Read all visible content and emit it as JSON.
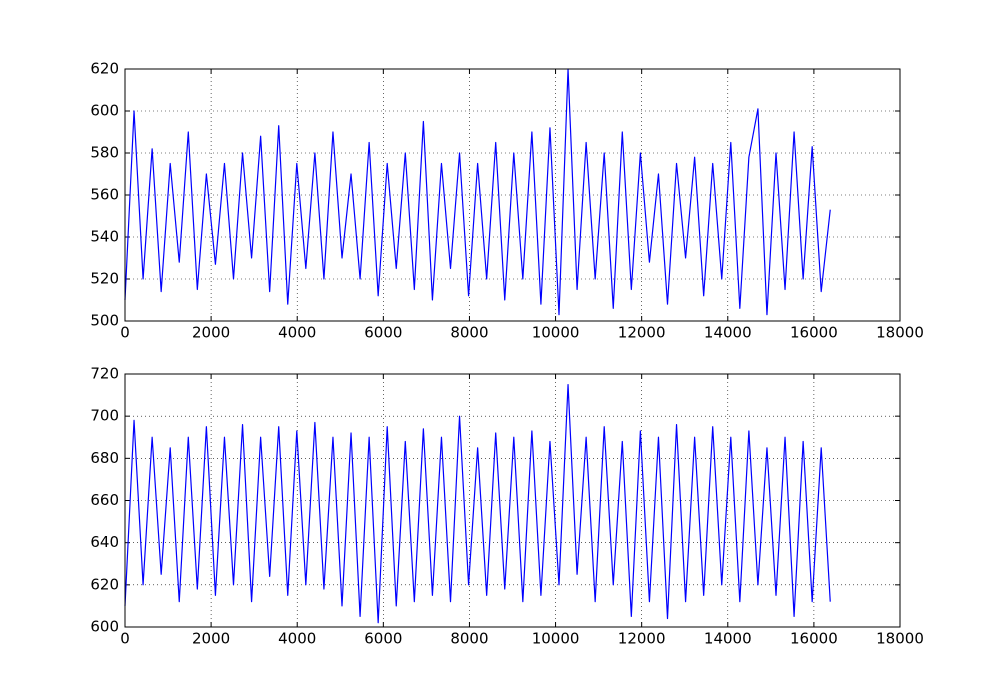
{
  "chart_data": [
    {
      "type": "line",
      "x": [
        0,
        210,
        420,
        630,
        840,
        1050,
        1260,
        1470,
        1680,
        1890,
        2100,
        2310,
        2520,
        2730,
        2940,
        3150,
        3360,
        3570,
        3780,
        3990,
        4200,
        4410,
        4620,
        4830,
        5040,
        5250,
        5460,
        5670,
        5880,
        6090,
        6300,
        6510,
        6720,
        6930,
        7140,
        7350,
        7560,
        7770,
        7980,
        8190,
        8400,
        8610,
        8820,
        9030,
        9240,
        9450,
        9660,
        9870,
        10080,
        10290,
        10500,
        10710,
        10920,
        11130,
        11340,
        11550,
        11760,
        11970,
        12180,
        12390,
        12600,
        12810,
        13020,
        13230,
        13440,
        13650,
        13860,
        14070,
        14280,
        14490,
        14700,
        14910,
        15120,
        15330,
        15540,
        15750,
        15960,
        16170,
        16380
      ],
      "series": [
        {
          "color": "#0000ff",
          "values": [
            510,
            600,
            520,
            582,
            514,
            575,
            528,
            590,
            515,
            570,
            527,
            575,
            520,
            580,
            530,
            588,
            514,
            593,
            508,
            575,
            525,
            580,
            520,
            590,
            530,
            570,
            520,
            585,
            512,
            575,
            525,
            580,
            515,
            595,
            510,
            575,
            525,
            580,
            512,
            575,
            520,
            585,
            510,
            580,
            520,
            590,
            508,
            592,
            503,
            620,
            515,
            585,
            520,
            580,
            506,
            590,
            515,
            580,
            528,
            570,
            508,
            575,
            530,
            578,
            512,
            575,
            520,
            585,
            506,
            578,
            601,
            503,
            580,
            515,
            590,
            520,
            583,
            514,
            553
          ]
        }
      ],
      "xlim": [
        0,
        18000
      ],
      "xticks": [
        0,
        2000,
        4000,
        6000,
        8000,
        10000,
        12000,
        14000,
        16000,
        18000
      ],
      "ylim": [
        500,
        620
      ],
      "yticks": [
        500,
        520,
        540,
        560,
        580,
        600,
        620
      ],
      "grid": true
    },
    {
      "type": "line",
      "x": [
        0,
        210,
        420,
        630,
        840,
        1050,
        1260,
        1470,
        1680,
        1890,
        2100,
        2310,
        2520,
        2730,
        2940,
        3150,
        3360,
        3570,
        3780,
        3990,
        4200,
        4410,
        4620,
        4830,
        5040,
        5250,
        5460,
        5670,
        5880,
        6090,
        6300,
        6510,
        6720,
        6930,
        7140,
        7350,
        7560,
        7770,
        7980,
        8190,
        8400,
        8610,
        8820,
        9030,
        9240,
        9450,
        9660,
        9870,
        10080,
        10290,
        10500,
        10710,
        10920,
        11130,
        11340,
        11550,
        11760,
        11970,
        12180,
        12390,
        12600,
        12810,
        13020,
        13230,
        13440,
        13650,
        13860,
        14070,
        14280,
        14490,
        14700,
        14910,
        15120,
        15330,
        15540,
        15750,
        15960,
        16170,
        16380
      ],
      "series": [
        {
          "color": "#0000ff",
          "values": [
            610,
            698,
            620,
            690,
            625,
            685,
            612,
            690,
            618,
            695,
            615,
            690,
            620,
            696,
            612,
            690,
            624,
            695,
            615,
            693,
            620,
            697,
            618,
            690,
            610,
            692,
            605,
            690,
            602,
            695,
            610,
            688,
            612,
            694,
            615,
            690,
            612,
            700,
            620,
            685,
            615,
            692,
            618,
            690,
            612,
            693,
            615,
            688,
            620,
            715,
            625,
            690,
            612,
            695,
            620,
            688,
            605,
            693,
            612,
            690,
            604,
            696,
            612,
            690,
            615,
            695,
            620,
            690,
            612,
            693,
            620,
            685,
            615,
            690,
            605,
            688,
            612,
            685,
            612
          ]
        }
      ],
      "xlim": [
        0,
        18000
      ],
      "xticks": [
        0,
        2000,
        4000,
        6000,
        8000,
        10000,
        12000,
        14000,
        16000,
        18000
      ],
      "ylim": [
        600,
        720
      ],
      "yticks": [
        600,
        620,
        640,
        660,
        680,
        700,
        720
      ],
      "grid": true
    }
  ]
}
